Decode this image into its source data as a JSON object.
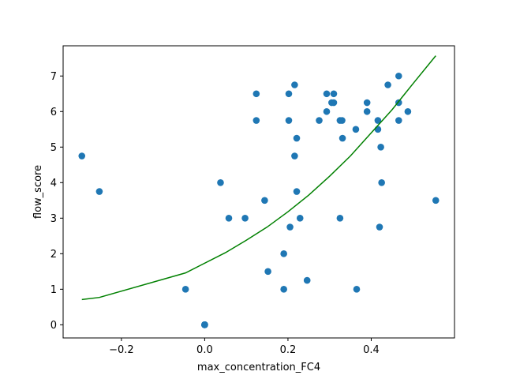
{
  "chart_data": {
    "type": "scatter",
    "title": "",
    "xlabel": "max_concentration_FC4",
    "ylabel": "flow_score",
    "xlim": [
      -0.34,
      0.6
    ],
    "ylim": [
      -0.37,
      7.85
    ],
    "xticks": [
      -0.2,
      0.0,
      0.2,
      0.4
    ],
    "xtick_labels": [
      "−0.2",
      "0.0",
      "0.2",
      "0.4"
    ],
    "yticks": [
      0,
      1,
      2,
      3,
      4,
      5,
      6,
      7
    ],
    "ytick_labels": [
      "0",
      "1",
      "2",
      "3",
      "4",
      "5",
      "6",
      "7"
    ],
    "grid": false,
    "colors": {
      "points": "#1f77b4",
      "line": "#008000"
    },
    "series": [
      {
        "kind": "scatter",
        "points": [
          [
            -0.295,
            4.75
          ],
          [
            -0.253,
            3.75
          ],
          [
            -0.046,
            1.0
          ],
          [
            0.0,
            0.0
          ],
          [
            0.0,
            0.0
          ],
          [
            0.0,
            0.0
          ],
          [
            0.0,
            0.0
          ],
          [
            0.0,
            0.0
          ],
          [
            0.0,
            0.0
          ],
          [
            0.038,
            4.0
          ],
          [
            0.058,
            3.0
          ],
          [
            0.097,
            3.0
          ],
          [
            0.124,
            6.5
          ],
          [
            0.124,
            5.75
          ],
          [
            0.144,
            3.5
          ],
          [
            0.152,
            1.5
          ],
          [
            0.19,
            2.0
          ],
          [
            0.19,
            1.0
          ],
          [
            0.202,
            6.5
          ],
          [
            0.202,
            5.75
          ],
          [
            0.205,
            2.75
          ],
          [
            0.216,
            6.75
          ],
          [
            0.216,
            4.75
          ],
          [
            0.221,
            5.25
          ],
          [
            0.221,
            3.75
          ],
          [
            0.229,
            3.0
          ],
          [
            0.246,
            1.25
          ],
          [
            0.275,
            5.75
          ],
          [
            0.293,
            6.5
          ],
          [
            0.293,
            6.0
          ],
          [
            0.305,
            6.25
          ],
          [
            0.31,
            6.5
          ],
          [
            0.31,
            6.25
          ],
          [
            0.325,
            5.75
          ],
          [
            0.325,
            3.0
          ],
          [
            0.33,
            5.75
          ],
          [
            0.331,
            5.25
          ],
          [
            0.363,
            5.5
          ],
          [
            0.365,
            1.0
          ],
          [
            0.39,
            6.25
          ],
          [
            0.39,
            6.0
          ],
          [
            0.416,
            5.75
          ],
          [
            0.416,
            5.5
          ],
          [
            0.42,
            2.75
          ],
          [
            0.423,
            5.0
          ],
          [
            0.425,
            4.0
          ],
          [
            0.44,
            6.75
          ],
          [
            0.466,
            7.0
          ],
          [
            0.466,
            6.25
          ],
          [
            0.466,
            5.75
          ],
          [
            0.488,
            6.0
          ],
          [
            0.555,
            3.5
          ]
        ]
      },
      {
        "kind": "line",
        "points": [
          [
            -0.295,
            0.71
          ],
          [
            -0.253,
            0.77
          ],
          [
            -0.046,
            1.46
          ],
          [
            0.05,
            2.03
          ],
          [
            0.1,
            2.38
          ],
          [
            0.15,
            2.75
          ],
          [
            0.2,
            3.18
          ],
          [
            0.25,
            3.65
          ],
          [
            0.3,
            4.18
          ],
          [
            0.35,
            4.75
          ],
          [
            0.4,
            5.4
          ],
          [
            0.45,
            6.05
          ],
          [
            0.5,
            6.78
          ],
          [
            0.555,
            7.57
          ]
        ]
      }
    ]
  }
}
